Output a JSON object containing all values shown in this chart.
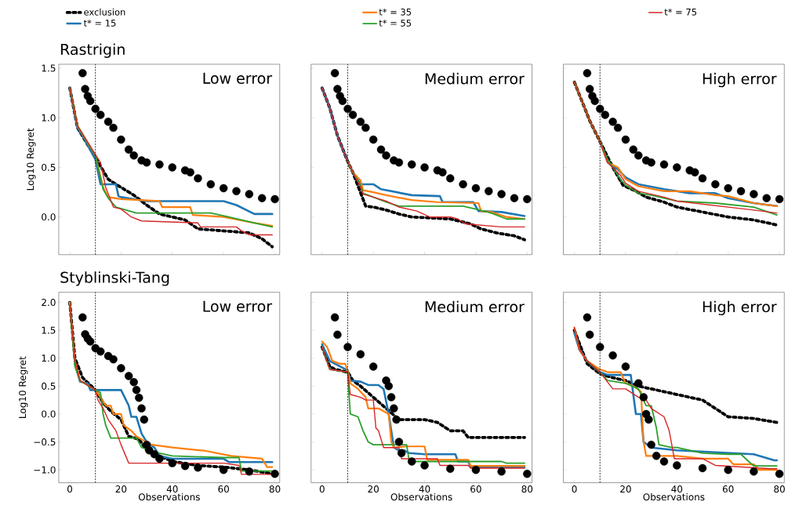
{
  "chart_data": [
    {
      "type": "line",
      "title": "Rastrigin",
      "ylabel": "Log10 Regret",
      "annotations": [
        "Low error"
      ],
      "xlim": [
        -4.3,
        81.9
      ],
      "ylim": [
        -0.38,
        1.54
      ],
      "xticks": [
        0,
        20,
        40,
        60,
        80
      ],
      "yticks": [
        {
          "value": 0,
          "label": "0.0"
        },
        {
          "value": 0.5,
          "label": "0.5"
        },
        {
          "value": 1,
          "label": "1.0"
        },
        {
          "value": 1.5,
          "label": "1.5"
        }
      ],
      "tick_labels": "y",
      "legend": "top",
      "ref_lines": [
        {
          "axis": "x",
          "value": 10,
          "color": "#000000",
          "line_style": "dashed"
        }
      ],
      "series": [
        {
          "type": "scatter",
          "marker": "circle",
          "color": "#000000",
          "x": [
            5,
            6,
            7,
            8,
            10,
            12,
            15,
            17,
            20,
            23,
            25,
            28,
            30,
            35,
            40,
            45,
            47,
            50,
            55,
            60,
            65,
            70,
            75,
            80
          ],
          "values": [
            1.45,
            1.29,
            1.22,
            1.17,
            1.09,
            1.03,
            0.96,
            0.9,
            0.78,
            0.68,
            0.62,
            0.57,
            0.55,
            0.53,
            0.5,
            0.47,
            0.45,
            0.39,
            0.33,
            0.29,
            0.26,
            0.23,
            0.19,
            0.18
          ]
        },
        {
          "name": "exclusion",
          "line_style": "dotted",
          "color": "#000000",
          "x": [
            0,
            3,
            10,
            15,
            18,
            25,
            30,
            35,
            40,
            45,
            50,
            60,
            70,
            75,
            79
          ],
          "values": [
            1.3,
            0.9,
            0.6,
            0.38,
            0.33,
            0.22,
            0.12,
            0.03,
            0.0,
            -0.03,
            -0.12,
            -0.14,
            -0.16,
            -0.22,
            -0.3
          ]
        },
        {
          "name": "t* = 15",
          "line_style": "solid",
          "color": "#1f77b4",
          "x": [
            0,
            3,
            5,
            10,
            12,
            18,
            19,
            20,
            30,
            60,
            65,
            72,
            79
          ],
          "values": [
            1.3,
            0.9,
            0.82,
            0.58,
            0.33,
            0.33,
            0.21,
            0.2,
            0.16,
            0.16,
            0.12,
            0.03,
            0.03
          ]
        },
        {
          "name": "t* = 35",
          "line_style": "solid",
          "color": "#ff7f0e",
          "x": [
            0,
            3,
            10,
            13,
            15,
            20,
            35,
            36,
            47,
            48,
            60,
            70,
            79
          ],
          "values": [
            1.3,
            0.92,
            0.62,
            0.3,
            0.2,
            0.18,
            0.16,
            0.1,
            0.1,
            0.02,
            0.0,
            -0.05,
            -0.09
          ]
        },
        {
          "name": "t* = 55",
          "line_style": "solid",
          "color": "#2ca02c",
          "x": [
            0,
            3,
            10,
            13,
            15,
            18,
            22,
            26,
            55,
            62,
            72,
            79
          ],
          "values": [
            1.3,
            0.92,
            0.62,
            0.28,
            0.19,
            0.1,
            0.07,
            0.04,
            0.04,
            0.0,
            -0.06,
            -0.1
          ]
        },
        {
          "name": "t* = 75",
          "line_style": "solid",
          "color": "#d62728",
          "x": [
            0,
            3,
            10,
            12,
            14,
            17,
            20,
            24,
            28,
            50,
            51,
            65,
            67,
            70,
            79
          ],
          "values": [
            1.3,
            0.92,
            0.63,
            0.55,
            0.3,
            0.1,
            0.08,
            0.0,
            -0.04,
            -0.06,
            -0.1,
            -0.1,
            -0.14,
            -0.18,
            -0.18
          ]
        }
      ]
    },
    {
      "type": "line",
      "annotations": [
        "Medium error"
      ],
      "xlim": [
        -4.3,
        81.9
      ],
      "ylim": [
        -0.38,
        1.54
      ],
      "xticks": [
        0,
        20,
        40,
        60,
        80
      ],
      "yticks": [
        0,
        0.5,
        1,
        1.5
      ],
      "tick_labels": false,
      "ref_lines": [
        {
          "axis": "x",
          "value": 10,
          "color": "#000000",
          "line_style": "dashed"
        }
      ],
      "series": [
        {
          "type": "scatter",
          "marker": "circle",
          "color": "#000000",
          "x": [
            5,
            6,
            7,
            8,
            10,
            12,
            15,
            17,
            20,
            23,
            25,
            28,
            30,
            35,
            40,
            45,
            47,
            50,
            55,
            60,
            65,
            70,
            75,
            80
          ],
          "values": [
            1.45,
            1.29,
            1.22,
            1.17,
            1.09,
            1.03,
            0.96,
            0.9,
            0.78,
            0.68,
            0.62,
            0.57,
            0.55,
            0.53,
            0.5,
            0.47,
            0.45,
            0.39,
            0.33,
            0.29,
            0.26,
            0.23,
            0.19,
            0.18
          ]
        },
        {
          "line_style": "dotted",
          "color": "#000000",
          "x": [
            0,
            3,
            6,
            10,
            12,
            17,
            20,
            25,
            30,
            35,
            50,
            58,
            62,
            68,
            75,
            79
          ],
          "values": [
            1.3,
            1.1,
            0.82,
            0.56,
            0.45,
            0.11,
            0.1,
            0.07,
            0.03,
            0.0,
            -0.02,
            -0.07,
            -0.12,
            -0.16,
            -0.19,
            -0.23
          ]
        },
        {
          "line_style": "solid",
          "color": "#1f77b4",
          "x": [
            0,
            3,
            6,
            10,
            12,
            15,
            20,
            23,
            35,
            46,
            47,
            59,
            61,
            70,
            79
          ],
          "values": [
            1.3,
            1.1,
            0.82,
            0.56,
            0.45,
            0.33,
            0.33,
            0.28,
            0.22,
            0.21,
            0.15,
            0.15,
            0.06,
            0.05,
            0.01
          ]
        },
        {
          "line_style": "solid",
          "color": "#ff7f0e",
          "x": [
            10,
            12,
            15,
            16,
            20,
            25,
            35,
            45,
            61,
            62,
            66,
            72,
            79
          ],
          "values": [
            0.56,
            0.45,
            0.37,
            0.27,
            0.25,
            0.22,
            0.17,
            0.15,
            0.14,
            0.06,
            0.05,
            0.0,
            -0.02
          ]
        },
        {
          "line_style": "solid",
          "color": "#2ca02c",
          "x": [
            10,
            12,
            15,
            16,
            20,
            25,
            30,
            55,
            60,
            66,
            72,
            79
          ],
          "values": [
            0.56,
            0.45,
            0.32,
            0.24,
            0.2,
            0.15,
            0.11,
            0.11,
            0.08,
            0.04,
            -0.02,
            -0.02
          ]
        },
        {
          "line_style": "solid",
          "color": "#d62728",
          "x": [
            0,
            3,
            6,
            10,
            12,
            15,
            16,
            20,
            25,
            30,
            37,
            42,
            50,
            53,
            56,
            70,
            79
          ],
          "values": [
            1.3,
            1.1,
            0.82,
            0.56,
            0.45,
            0.3,
            0.23,
            0.2,
            0.16,
            0.1,
            0.06,
            0.0,
            0.0,
            -0.02,
            -0.07,
            -0.1,
            -0.1
          ]
        }
      ]
    },
    {
      "type": "line",
      "annotations": [
        "High error"
      ],
      "xlim": [
        -4.3,
        81.9
      ],
      "ylim": [
        -0.38,
        1.54
      ],
      "xticks": [
        0,
        20,
        40,
        60,
        80
      ],
      "yticks": [
        0,
        0.5,
        1,
        1.5
      ],
      "tick_labels": false,
      "ref_lines": [
        {
          "axis": "x",
          "value": 10,
          "color": "#000000",
          "line_style": "dashed"
        }
      ],
      "series": [
        {
          "type": "scatter",
          "marker": "circle",
          "color": "#000000",
          "x": [
            5,
            6,
            7,
            8,
            10,
            12,
            15,
            17,
            20,
            23,
            25,
            28,
            30,
            35,
            40,
            45,
            47,
            50,
            55,
            60,
            65,
            70,
            75,
            80
          ],
          "values": [
            1.45,
            1.29,
            1.22,
            1.17,
            1.09,
            1.03,
            0.96,
            0.9,
            0.78,
            0.68,
            0.62,
            0.57,
            0.55,
            0.53,
            0.5,
            0.47,
            0.45,
            0.39,
            0.33,
            0.29,
            0.26,
            0.23,
            0.19,
            0.18
          ]
        },
        {
          "line_style": "dotted",
          "color": "#000000",
          "x": [
            0,
            6,
            10,
            15,
            19,
            24,
            28,
            35,
            40,
            50,
            60,
            70,
            79
          ],
          "values": [
            1.36,
            0.97,
            0.76,
            0.5,
            0.32,
            0.26,
            0.2,
            0.15,
            0.1,
            0.05,
            0.0,
            -0.03,
            -0.08
          ]
        },
        {
          "line_style": "solid",
          "color": "#1f77b4",
          "x": [
            10,
            13,
            17,
            20,
            25,
            35,
            45,
            55,
            60,
            70,
            79
          ],
          "values": [
            0.76,
            0.55,
            0.48,
            0.4,
            0.33,
            0.28,
            0.24,
            0.24,
            0.19,
            0.14,
            0.11
          ]
        },
        {
          "line_style": "solid",
          "color": "#ff7f0e",
          "x": [
            0,
            6,
            10,
            13,
            17,
            20,
            25,
            35,
            45,
            55,
            60,
            70,
            79
          ],
          "values": [
            1.36,
            0.97,
            0.76,
            0.55,
            0.5,
            0.38,
            0.31,
            0.26,
            0.26,
            0.22,
            0.21,
            0.14,
            0.11
          ]
        },
        {
          "line_style": "solid",
          "color": "#2ca02c",
          "x": [
            0,
            6,
            10,
            13,
            18,
            20,
            25,
            30,
            40,
            55,
            70,
            79
          ],
          "values": [
            1.36,
            0.97,
            0.76,
            0.58,
            0.38,
            0.32,
            0.24,
            0.22,
            0.16,
            0.14,
            0.1,
            0.02
          ]
        },
        {
          "line_style": "solid",
          "color": "#d62728",
          "x": [
            0,
            6,
            10,
            13,
            18,
            20,
            25,
            30,
            35,
            40,
            50,
            60,
            70,
            79
          ],
          "values": [
            1.36,
            0.97,
            0.76,
            0.55,
            0.42,
            0.34,
            0.26,
            0.23,
            0.2,
            0.16,
            0.13,
            0.1,
            0.07,
            0.04
          ]
        }
      ]
    },
    {
      "type": "line",
      "title": "Styblinski-Tang",
      "xlabel": "Observations",
      "ylabel": "Log10 Regret",
      "annotations": [
        "Low error"
      ],
      "xlim": [
        -4.3,
        81.9
      ],
      "ylim": [
        -1.23,
        2.18
      ],
      "xticks": [
        0,
        20,
        40,
        60,
        80
      ],
      "yticks": [
        {
          "value": -1,
          "label": "−1.0"
        },
        {
          "value": -0.5,
          "label": "−0.5"
        },
        {
          "value": 0,
          "label": "0.0"
        },
        {
          "value": 0.5,
          "label": "0.5"
        },
        {
          "value": 1,
          "label": "1.0"
        },
        {
          "value": 1.5,
          "label": "1.5"
        },
        {
          "value": 2,
          "label": "2.0"
        }
      ],
      "ref_lines": [
        {
          "axis": "x",
          "value": 10,
          "color": "#000000",
          "line_style": "dashed"
        }
      ],
      "series": [
        {
          "type": "scatter",
          "marker": "circle",
          "color": "#000000",
          "x": [
            5,
            6,
            7,
            8,
            10,
            12,
            15,
            17,
            20,
            23,
            25,
            26,
            27,
            28,
            29,
            30,
            31,
            33,
            35,
            40,
            45,
            50,
            60,
            70,
            80
          ],
          "values": [
            1.73,
            1.43,
            1.35,
            1.3,
            1.18,
            1.12,
            1.04,
            0.98,
            0.82,
            0.68,
            0.57,
            0.43,
            0.29,
            0.1,
            -0.1,
            -0.55,
            -0.65,
            -0.72,
            -0.8,
            -0.88,
            -0.93,
            -0.96,
            -1.0,
            -1.03,
            -1.07
          ]
        },
        {
          "line_style": "dotted",
          "color": "#000000",
          "x": [
            0,
            2,
            5,
            10,
            13,
            16,
            20,
            23,
            27,
            30,
            35,
            40,
            50,
            60,
            70,
            79
          ],
          "values": [
            2.0,
            1.0,
            0.65,
            0.43,
            0.2,
            0.05,
            -0.1,
            -0.4,
            -0.45,
            -0.65,
            -0.75,
            -0.85,
            -0.92,
            -0.95,
            -1.0,
            -1.07
          ]
        },
        {
          "line_style": "solid",
          "color": "#1f77b4",
          "x": [
            2,
            4,
            7,
            8,
            10,
            20,
            23,
            24,
            26,
            28,
            30,
            33,
            35,
            40,
            60,
            62,
            79
          ],
          "values": [
            0.9,
            0.58,
            0.55,
            0.43,
            0.43,
            0.43,
            0.15,
            -0.05,
            -0.05,
            -0.35,
            -0.5,
            -0.6,
            -0.75,
            -0.8,
            -0.8,
            -0.86,
            -0.86
          ]
        },
        {
          "line_style": "solid",
          "color": "#ff7f0e",
          "x": [
            0,
            2,
            4,
            10,
            12,
            14,
            16,
            17,
            20,
            21,
            24,
            26,
            29,
            32,
            40,
            53,
            63,
            75,
            77,
            79
          ],
          "values": [
            2.0,
            0.95,
            0.6,
            0.43,
            0.3,
            0.15,
            0.15,
            0.0,
            0.0,
            -0.2,
            -0.3,
            -0.4,
            -0.48,
            -0.55,
            -0.6,
            -0.66,
            -0.75,
            -0.8,
            -0.95,
            -0.95
          ]
        },
        {
          "line_style": "solid",
          "color": "#2ca02c",
          "x": [
            0,
            2,
            4,
            10,
            12,
            13,
            14,
            16,
            26,
            28,
            35,
            40,
            60,
            66,
            67,
            79
          ],
          "values": [
            1.95,
            0.85,
            0.6,
            0.43,
            0.38,
            0.0,
            -0.2,
            -0.43,
            -0.43,
            -0.6,
            -0.7,
            -0.75,
            -0.78,
            -0.78,
            -1.02,
            -1.02
          ]
        },
        {
          "line_style": "solid",
          "color": "#d62728",
          "x": [
            0,
            2,
            4,
            10,
            11,
            13,
            15,
            18,
            20,
            23,
            60,
            66,
            67,
            79
          ],
          "values": [
            1.95,
            0.95,
            0.6,
            0.43,
            0.25,
            0.1,
            -0.1,
            -0.3,
            -0.55,
            -0.88,
            -0.88,
            -0.92,
            -1.08,
            -1.08
          ]
        }
      ]
    },
    {
      "type": "line",
      "xlabel": "Observations",
      "annotations": [
        "Medium error"
      ],
      "xlim": [
        -4.3,
        81.9
      ],
      "ylim": [
        -1.23,
        2.18
      ],
      "xticks": [
        0,
        20,
        40,
        60,
        80
      ],
      "yticks": [
        -1,
        -0.5,
        0,
        0.5,
        1,
        1.5,
        2
      ],
      "tick_labels": "x",
      "ref_lines": [
        {
          "axis": "x",
          "value": 10,
          "color": "#000000",
          "line_style": "dashed"
        }
      ],
      "series": [
        {
          "type": "scatter",
          "marker": "circle",
          "color": "#000000",
          "x": [
            5,
            6,
            10,
            15,
            20,
            25,
            26,
            27,
            28,
            29,
            30,
            31,
            35,
            40,
            50,
            60,
            70,
            80
          ],
          "values": [
            1.73,
            1.42,
            1.2,
            1.07,
            0.85,
            0.6,
            0.5,
            0.3,
            0.1,
            -0.1,
            -0.5,
            -0.7,
            -0.85,
            -0.92,
            -0.98,
            -1.0,
            -1.03,
            -1.07
          ]
        },
        {
          "line_style": "dotted",
          "color": "#000000",
          "x": [
            0,
            3,
            5,
            10,
            12,
            15,
            20,
            25,
            30,
            40,
            45,
            50,
            55,
            57,
            79
          ],
          "values": [
            1.2,
            0.85,
            0.8,
            0.75,
            0.6,
            0.5,
            0.3,
            0.1,
            -0.1,
            -0.1,
            -0.15,
            -0.3,
            -0.3,
            -0.42,
            -0.42
          ]
        },
        {
          "line_style": "solid",
          "color": "#1f77b4",
          "x": [
            0,
            3,
            10,
            11,
            15,
            18,
            22,
            24,
            26,
            28,
            30,
            32,
            34,
            40,
            52,
            53,
            57,
            58,
            79
          ],
          "values": [
            1.25,
            0.95,
            0.78,
            0.6,
            0.58,
            0.52,
            0.52,
            0.45,
            0.0,
            -0.6,
            -0.65,
            -0.65,
            -0.7,
            -0.72,
            -0.72,
            -0.85,
            -0.85,
            -0.95,
            -0.95
          ]
        },
        {
          "line_style": "solid",
          "color": "#ff7f0e",
          "x": [
            0,
            2,
            4,
            7,
            9,
            10,
            11,
            14,
            17,
            18,
            22,
            26,
            27,
            28,
            33,
            40,
            41,
            57,
            58,
            79
          ],
          "values": [
            1.3,
            1.2,
            0.95,
            0.9,
            0.9,
            0.78,
            0.55,
            0.45,
            0.3,
            0.1,
            0.1,
            0.0,
            -0.5,
            -0.6,
            -0.58,
            -0.58,
            -0.82,
            -0.82,
            -0.93,
            -0.93
          ]
        },
        {
          "line_style": "solid",
          "color": "#2ca02c",
          "x": [
            0,
            3,
            10,
            11,
            14,
            16,
            18,
            20,
            33,
            34,
            57,
            70,
            72,
            79
          ],
          "values": [
            1.2,
            0.8,
            0.75,
            0.0,
            -0.05,
            -0.3,
            -0.5,
            -0.55,
            -0.55,
            -0.85,
            -0.85,
            -0.85,
            -0.88,
            -0.88
          ]
        },
        {
          "line_style": "solid",
          "color": "#d62728",
          "x": [
            0,
            3,
            10,
            11,
            15,
            17,
            20,
            21,
            22,
            24,
            30,
            31,
            45,
            46,
            57,
            58,
            79
          ],
          "values": [
            1.2,
            0.8,
            0.75,
            0.35,
            0.3,
            0.25,
            0.25,
            -0.25,
            -0.3,
            -0.6,
            -0.6,
            -0.8,
            -0.8,
            -0.92,
            -0.92,
            -0.97,
            -0.97
          ]
        }
      ]
    },
    {
      "type": "line",
      "xlabel": "Observations",
      "annotations": [
        "High error"
      ],
      "xlim": [
        -4.3,
        81.9
      ],
      "ylim": [
        -1.23,
        2.18
      ],
      "xticks": [
        0,
        20,
        40,
        60,
        80
      ],
      "yticks": [
        -1,
        -0.5,
        0,
        0.5,
        1,
        1.5,
        2
      ],
      "tick_labels": "x",
      "ref_lines": [
        {
          "axis": "x",
          "value": 10,
          "color": "#000000",
          "line_style": "dashed"
        }
      ],
      "series": [
        {
          "type": "scatter",
          "marker": "circle",
          "color": "#000000",
          "x": [
            5,
            6,
            10,
            15,
            20,
            25,
            27,
            28,
            29,
            30,
            32,
            35,
            40,
            50,
            60,
            70,
            80
          ],
          "values": [
            1.73,
            1.42,
            1.2,
            1.05,
            0.85,
            0.55,
            0.3,
            0.0,
            -0.1,
            -0.55,
            -0.75,
            -0.85,
            -0.92,
            -0.97,
            -1.0,
            -1.03,
            -1.07
          ]
        },
        {
          "line_style": "dotted",
          "color": "#000000",
          "x": [
            0,
            5,
            10,
            15,
            20,
            25,
            30,
            40,
            45,
            50,
            55,
            60,
            70,
            79
          ],
          "values": [
            1.5,
            0.9,
            0.72,
            0.65,
            0.6,
            0.5,
            0.45,
            0.35,
            0.3,
            0.25,
            0.1,
            -0.05,
            -0.08,
            -0.15
          ]
        },
        {
          "line_style": "solid",
          "color": "#1f77b4",
          "x": [
            0,
            2,
            5,
            10,
            13,
            22,
            24,
            26,
            27,
            30,
            40,
            70,
            78,
            79
          ],
          "values": [
            1.45,
            1.15,
            0.95,
            0.75,
            0.7,
            0.7,
            0.0,
            0.0,
            -0.5,
            -0.6,
            -0.65,
            -0.72,
            -0.83,
            -0.83
          ]
        },
        {
          "line_style": "solid",
          "color": "#ff7f0e",
          "x": [
            0,
            2,
            5,
            10,
            13,
            18,
            20,
            23,
            26,
            27,
            28,
            40,
            50,
            60,
            62,
            70,
            72,
            79
          ],
          "values": [
            1.55,
            1.15,
            0.95,
            0.8,
            0.75,
            0.75,
            0.55,
            0.5,
            0.4,
            -0.5,
            -0.75,
            -0.75,
            -0.8,
            -0.8,
            -0.9,
            -0.9,
            -1.0,
            -1.0
          ]
        },
        {
          "line_style": "solid",
          "color": "#2ca02c",
          "x": [
            5,
            10,
            13,
            20,
            25,
            28,
            30,
            32,
            33,
            38,
            40,
            50,
            60,
            65,
            68,
            70,
            79
          ],
          "values": [
            0.95,
            0.75,
            0.6,
            0.55,
            0.45,
            0.15,
            0.15,
            -0.25,
            -0.55,
            -0.6,
            -0.6,
            -0.7,
            -0.72,
            -0.72,
            -0.85,
            -0.93,
            -0.93
          ]
        },
        {
          "line_style": "solid",
          "color": "#d62728",
          "x": [
            0,
            2,
            5,
            10,
            15,
            20,
            25,
            28,
            30,
            35,
            37,
            39,
            50,
            55,
            77,
            79
          ],
          "values": [
            1.55,
            1.15,
            0.95,
            0.75,
            0.45,
            0.45,
            0.3,
            0.25,
            0.1,
            -0.05,
            -0.3,
            -0.8,
            -0.8,
            -0.92,
            -0.98,
            -0.98
          ]
        }
      ]
    }
  ]
}
